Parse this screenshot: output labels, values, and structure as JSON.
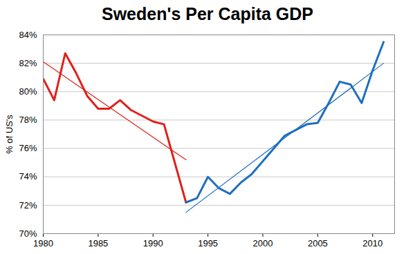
{
  "chart_data": {
    "type": "line",
    "title": "Sweden's Per Capita GDP",
    "y_label": "% of US's",
    "xlim": [
      1980,
      2012
    ],
    "xticks": [
      1980,
      1985,
      1990,
      1995,
      2000,
      2005,
      2010
    ],
    "ylim": [
      70,
      84
    ],
    "yticks": [
      {
        "value": 70,
        "label": "70%"
      },
      {
        "value": 72,
        "label": "72%"
      },
      {
        "value": 74,
        "label": "74%"
      },
      {
        "value": 76,
        "label": "76%"
      },
      {
        "value": 78,
        "label": "78%"
      },
      {
        "value": 80,
        "label": "80%"
      },
      {
        "value": 82,
        "label": "82%"
      },
      {
        "value": 84,
        "label": "84%"
      }
    ],
    "grid": true,
    "series": [
      {
        "color": "#e0201b",
        "line_style": "solid",
        "x": [
          1980,
          1981,
          1982,
          1983,
          1984,
          1985,
          1986,
          1987,
          1988,
          1989,
          1990,
          1991,
          1993
        ],
        "values": [
          80.9,
          79.4,
          82.7,
          81.3,
          79.7,
          78.8,
          78.8,
          79.4,
          78.7,
          78.3,
          77.9,
          77.7,
          72.2
        ]
      },
      {
        "color": "#1f6fbf",
        "line_style": "solid",
        "x": [
          1993,
          1994,
          1995,
          1996,
          1997,
          1998,
          1999,
          2000,
          2001,
          2002,
          2003,
          2004,
          2005,
          2006,
          2007,
          2008,
          2009,
          2010,
          2011
        ],
        "values": [
          72.2,
          72.5,
          74.0,
          73.2,
          72.8,
          73.6,
          74.2,
          75.1,
          76.0,
          76.9,
          77.3,
          77.7,
          77.8,
          79.2,
          80.7,
          80.5,
          79.2,
          81.5,
          83.5
        ]
      },
      {
        "color": "#e0201b",
        "line_style": "thin",
        "x": [
          1980,
          1993
        ],
        "values": [
          82.1,
          75.2
        ]
      },
      {
        "color": "#1f6fbf",
        "line_style": "thin",
        "x": [
          1993,
          2011
        ],
        "values": [
          71.5,
          82.0
        ]
      }
    ]
  }
}
